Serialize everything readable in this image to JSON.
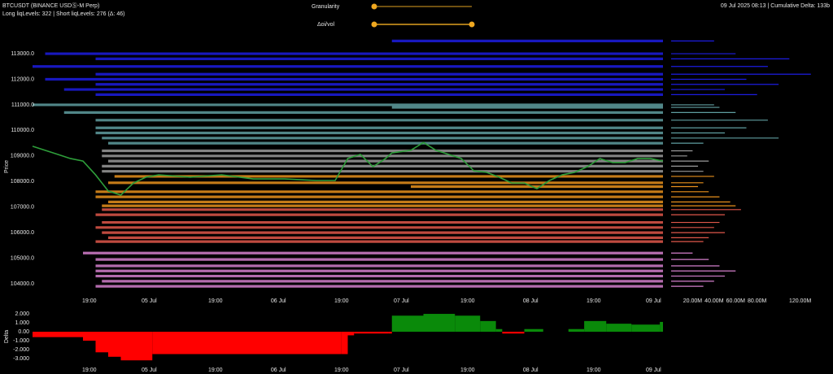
{
  "header": {
    "title": "BTCUSDT (BINANCE USDⓈ-M Perp)",
    "subtitle": "Long liqLevels: 322 | Short liqLevels: 276 (Δ: 46)",
    "status": "09 Jul 2025 08:13 | Cumulative Delta: 133b",
    "controls": [
      "Granularity",
      "Δoi/vol"
    ]
  },
  "chart_data": [
    {
      "type": "line",
      "y_label": "Price",
      "color": "#2e9e3a",
      "x": [
        0,
        2,
        4,
        6,
        8,
        10,
        12,
        14,
        16,
        18,
        20,
        25,
        30,
        35,
        40,
        45,
        48,
        50,
        52,
        54,
        56,
        57,
        60,
        62,
        64,
        66,
        68,
        70,
        72,
        74,
        76,
        78,
        80,
        82,
        84,
        86,
        88,
        90,
        92,
        94,
        96,
        98,
        100
      ],
      "values": [
        109380,
        109220,
        109060,
        108900,
        108800,
        108260,
        107630,
        107470,
        107940,
        108170,
        108260,
        108170,
        108260,
        108100,
        108100,
        108040,
        108040,
        108900,
        109060,
        108580,
        108900,
        109120,
        109220,
        109530,
        109220,
        109060,
        108900,
        108420,
        108360,
        108170,
        107940,
        107940,
        107720,
        108040,
        108260,
        108360,
        108580,
        108900,
        108740,
        108740,
        108900,
        108900,
        108800
      ],
      "xlim": [
        0,
        100
      ],
      "ylim": [
        103650,
        113670
      ],
      "xticks": [
        {
          "value": 9,
          "label": "19:00"
        },
        {
          "value": 18.5,
          "label": "05 Jul"
        },
        {
          "value": 29,
          "label": "19:00"
        },
        {
          "value": 39,
          "label": "06 Jul"
        },
        {
          "value": 49,
          "label": "19:00"
        },
        {
          "value": 58.5,
          "label": "07 Jul"
        },
        {
          "value": 69,
          "label": "19:00"
        },
        {
          "value": 79,
          "label": "08 Jul"
        },
        {
          "value": 89,
          "label": "19:00"
        },
        {
          "value": 98.5,
          "label": "09 Jul"
        }
      ],
      "yticks": [
        {
          "value": 104000,
          "label": "104000.0"
        },
        {
          "value": 105000,
          "label": "105000.0"
        },
        {
          "value": 106000,
          "label": "106000.0"
        },
        {
          "value": 107000,
          "label": "107000.0"
        },
        {
          "value": 108000,
          "label": "108000.0"
        },
        {
          "value": 109000,
          "label": "109000.0"
        },
        {
          "value": 110000,
          "label": "110000.0"
        },
        {
          "value": 111000,
          "label": "111000.0"
        },
        {
          "value": 112000,
          "label": "112000.0"
        },
        {
          "value": 113000,
          "label": "113000.0"
        }
      ]
    },
    {
      "type": "levels",
      "groups": [
        {
          "color": "#1c1ce0",
          "prices": [
            113500,
            113000,
            112800,
            112500,
            112200,
            112000,
            111800,
            111600,
            111400
          ],
          "starts": [
            57,
            2,
            10,
            0,
            10,
            2,
            10,
            5,
            10
          ],
          "values": [
            40000000,
            60000000,
            110000000,
            90000000,
            130000000,
            70000000,
            100000000,
            50000000,
            80000000
          ]
        },
        {
          "color": "#5f9ea0",
          "prices": [
            111000,
            110900,
            110700,
            110400,
            110100,
            109900,
            109700,
            109500
          ],
          "starts": [
            0,
            57,
            5,
            10,
            10,
            10,
            11,
            12
          ],
          "values": [
            40000000,
            45000000,
            60000000,
            90000000,
            70000000,
            50000000,
            100000000,
            30000000
          ]
        },
        {
          "color": "#9a9a9a",
          "prices": [
            109200,
            109000,
            108800,
            108600,
            108400
          ],
          "starts": [
            11,
            11,
            12,
            11,
            11
          ],
          "values": [
            20000000,
            15000000,
            35000000,
            25000000,
            30000000
          ]
        },
        {
          "color": "#e8901c",
          "prices": [
            108200,
            107950,
            107800,
            107600,
            107400,
            107200,
            107050
          ],
          "starts": [
            13,
            12,
            60,
            10,
            10,
            12,
            11
          ],
          "values": [
            40000000,
            30000000,
            25000000,
            35000000,
            45000000,
            55000000,
            60000000
          ]
        },
        {
          "color": "#e0574a",
          "prices": [
            106900,
            106700,
            106400,
            106200,
            106000,
            105800,
            105650
          ],
          "starts": [
            11,
            10,
            11,
            10,
            11,
            12,
            10
          ],
          "values": [
            65000000,
            50000000,
            45000000,
            40000000,
            50000000,
            35000000,
            30000000
          ]
        },
        {
          "color": "#d47fcc",
          "prices": [
            105200,
            104950,
            104700,
            104500,
            104300,
            104100,
            103900
          ],
          "starts": [
            8,
            10,
            10,
            10,
            10,
            11,
            10
          ],
          "values": [
            20000000,
            35000000,
            45000000,
            60000000,
            50000000,
            40000000,
            30000000
          ]
        }
      ],
      "xlim": [
        0,
        140000000
      ],
      "xticks": [
        {
          "value": 20000000,
          "label": "20.00M"
        },
        {
          "value": 40000000,
          "label": "40.00M"
        },
        {
          "value": 60000000,
          "label": "60.00M"
        },
        {
          "value": 80000000,
          "label": "80.00M"
        },
        {
          "value": 120000000,
          "label": "120.00M"
        }
      ]
    },
    {
      "type": "area",
      "y_label": "Delta",
      "positive_color": "#0a8a0a",
      "negative_color": "#ff0000",
      "x": [
        0,
        6,
        8,
        10,
        12,
        14,
        18,
        19,
        49,
        50,
        51,
        56.5,
        57,
        62,
        67,
        71,
        73.5,
        74.5,
        78,
        81,
        85,
        87.5,
        91,
        95,
        99.5
      ],
      "values": [
        -0.6,
        -0.6,
        -1.0,
        -2.3,
        -2.8,
        -3.2,
        -3.2,
        -2.5,
        -2.5,
        -0.4,
        -0.2,
        -0.2,
        1.8,
        2.0,
        1.8,
        1.2,
        0.3,
        -0.2,
        0.3,
        0,
        0.3,
        1.2,
        0.9,
        0.8,
        1.1
      ],
      "xlim": [
        0,
        100
      ],
      "ylim": [
        -4,
        2.55
      ],
      "xticks": [
        {
          "value": 9,
          "label": "19:00"
        },
        {
          "value": 18.5,
          "label": "05 Jul"
        },
        {
          "value": 29,
          "label": "19:00"
        },
        {
          "value": 39,
          "label": "06 Jul"
        },
        {
          "value": 49,
          "label": "19:00"
        },
        {
          "value": 58.5,
          "label": "07 Jul"
        },
        {
          "value": 69,
          "label": "19:00"
        },
        {
          "value": 79,
          "label": "08 Jul"
        },
        {
          "value": 89,
          "label": "19:00"
        },
        {
          "value": 98.5,
          "label": "09 Jul"
        }
      ],
      "yticks": [
        {
          "value": 2,
          "label": "2.000"
        },
        {
          "value": 1,
          "label": "1.000"
        },
        {
          "value": 0,
          "label": "0.00"
        },
        {
          "value": -1,
          "label": "-1.000"
        },
        {
          "value": -2,
          "label": "-2.000"
        },
        {
          "value": -3,
          "label": "-3.000"
        }
      ]
    }
  ]
}
